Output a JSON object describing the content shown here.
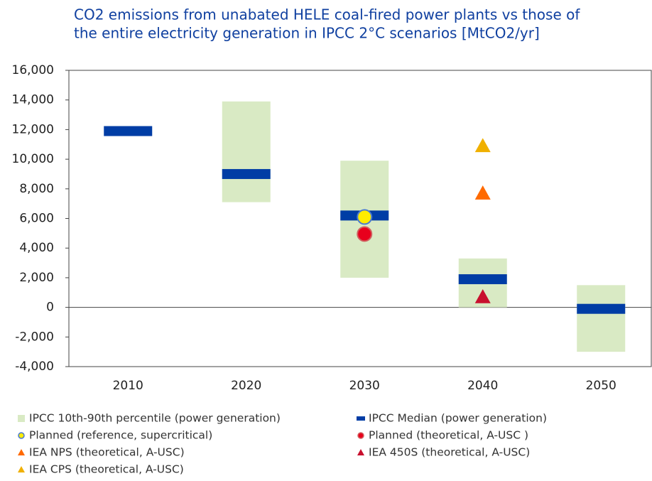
{
  "chart_data": {
    "type": "range",
    "title": [
      "CO2 emissions from unabated HELE coal-fired power plants vs those of",
      "the entire electricity generation in IPCC 2°C scenarios [MtCO2/yr]"
    ],
    "categories": [
      "2010",
      "2020",
      "2030",
      "2040",
      "2050"
    ],
    "ylim": [
      -4000,
      16000
    ],
    "yticks": [
      {
        "value": -4000,
        "label": "-4,000"
      },
      {
        "value": -2000,
        "label": "-2,000"
      },
      0,
      {
        "value": 2000,
        "label": "2,000"
      },
      {
        "value": 4000,
        "label": "4,000"
      },
      {
        "value": 6000,
        "label": "6,000"
      },
      {
        "value": 8000,
        "label": "8,000"
      },
      {
        "value": 10000,
        "label": "10,000"
      },
      {
        "value": 12000,
        "label": "12,000"
      },
      {
        "value": 14000,
        "label": "14,000"
      },
      {
        "value": 16000,
        "label": "16,000"
      }
    ],
    "series": [
      {
        "name": "IPCC 10th-90th percentile (power generation)",
        "marker": "range",
        "color": "#d9eac4",
        "low": [
          null,
          7100,
          2000,
          0,
          -3000
        ],
        "high": [
          null,
          13900,
          9900,
          3300,
          1500
        ]
      },
      {
        "name": "IPCC Median (power generation)",
        "marker": "dash",
        "color": "#003da5",
        "values": [
          11900,
          9000,
          6200,
          1900,
          -100
        ]
      },
      {
        "name": "Planned (reference, supercritical)",
        "marker": "circle",
        "color": "#ffec00",
        "edge": "#4a7bd0",
        "values": [
          null,
          null,
          6100,
          null,
          null
        ]
      },
      {
        "name": "Planned (theoretical, A-USC )",
        "marker": "circle",
        "color": "#e8001c",
        "edge": "#d06060",
        "values": [
          null,
          null,
          4950,
          null,
          null
        ]
      },
      {
        "name": "IEA NPS (theoretical, A-USC)",
        "marker": "triangle",
        "color": "#ff6a00",
        "values": [
          null,
          null,
          null,
          7700,
          null
        ]
      },
      {
        "name": "IEA 450S (theoretical, A-USC)",
        "marker": "triangle",
        "color": "#c8102e",
        "values": [
          null,
          null,
          null,
          700,
          null
        ]
      },
      {
        "name": "IEA CPS (theoretical, A-USC)",
        "marker": "triangle",
        "color": "#f0b000",
        "values": [
          null,
          null,
          null,
          10900,
          null
        ]
      }
    ]
  }
}
